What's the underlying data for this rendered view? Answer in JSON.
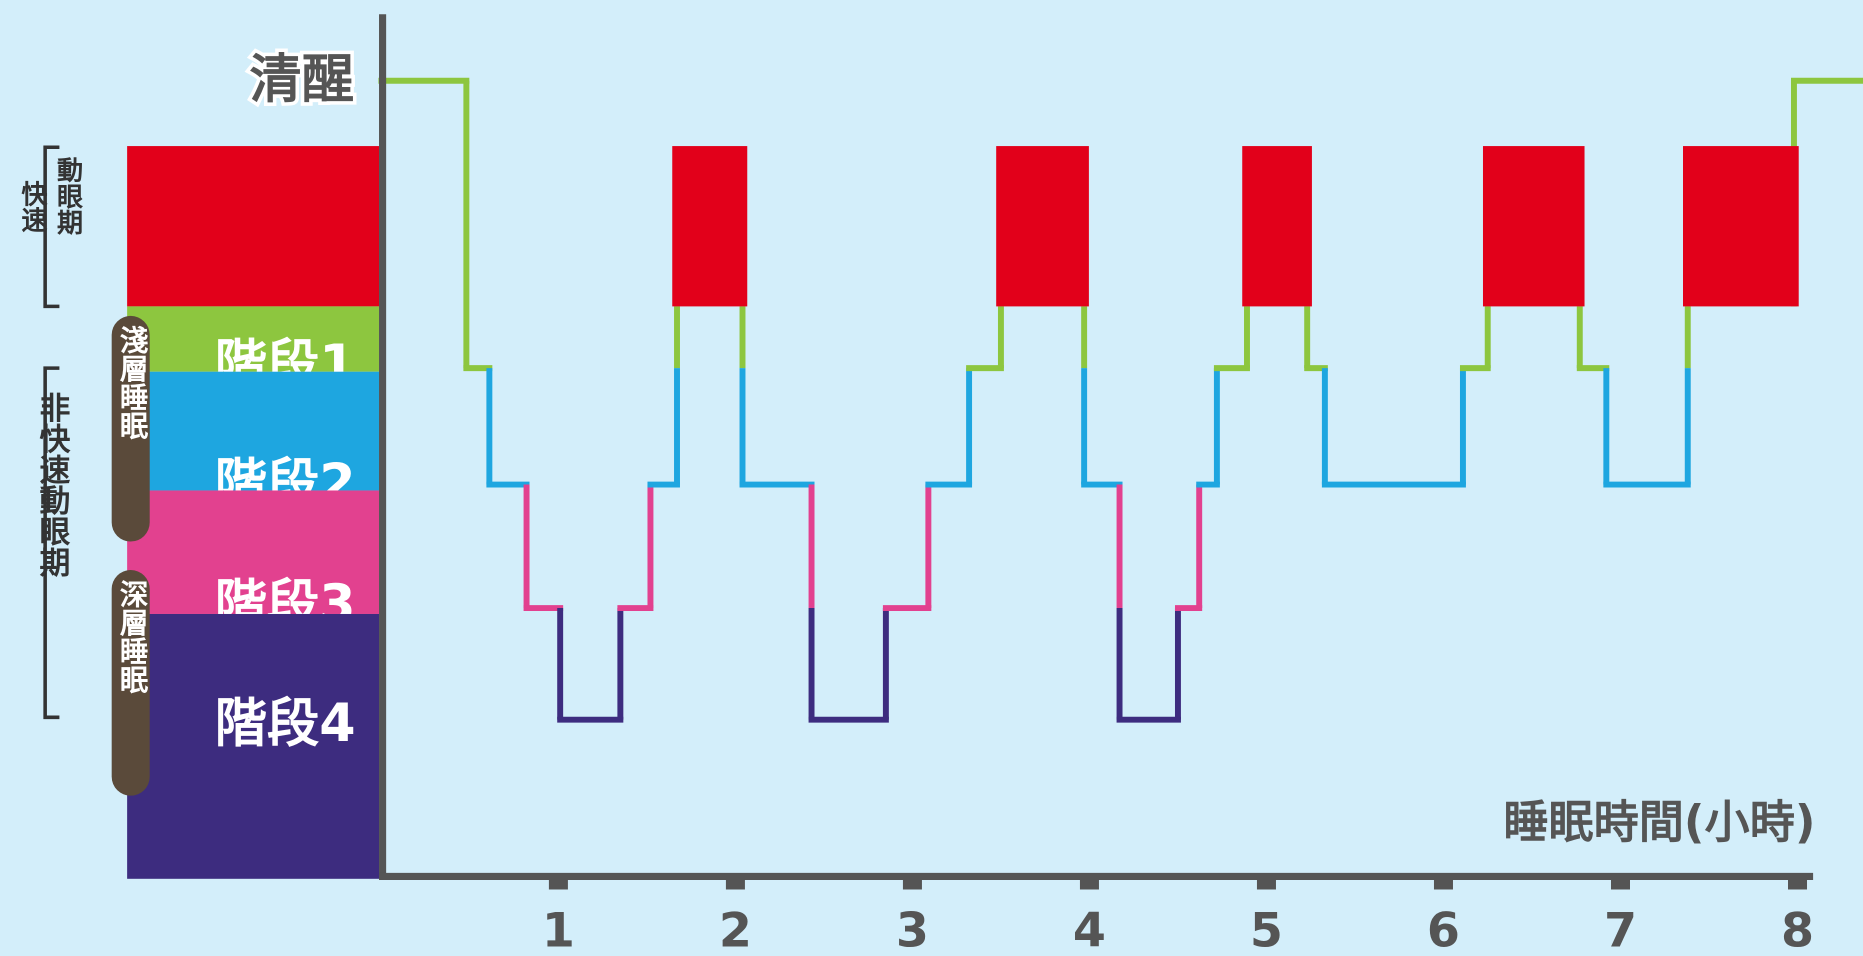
{
  "chart_data": {
    "type": "hypnogram",
    "stages": [
      "清醒",
      [
        "快速",
        "動眼期"
      ],
      "階段1",
      "階段2",
      "階段3",
      "階段4"
    ],
    "colors": [
      "#8dc63f",
      "#e2001a",
      "#8dc63f",
      "#1ea6e0",
      "#e2418f",
      "#3d2c7f"
    ],
    "nrem_label": "非快速動眼期",
    "light_sleep": "淺層睡眠",
    "deep_sleep": "深層睡眠",
    "xlabel": "睡眠時間(小時)",
    "x": [
      0,
      0.48,
      0.61,
      0.82,
      1.01,
      1.35,
      1.52,
      1.67,
      2.04,
      2.43,
      2.85,
      3.09,
      3.32,
      3.5,
      3.97,
      4.17,
      4.5,
      4.62,
      4.72,
      4.89,
      5.23,
      5.33,
      6.11,
      6.25,
      6.77,
      6.92,
      7.38,
      7.98,
      8.37
    ],
    "values": [
      0,
      2,
      3,
      4,
      5,
      4,
      3,
      1,
      3,
      5,
      4,
      3,
      2,
      1,
      3,
      5,
      4,
      3,
      2,
      1,
      2,
      3,
      2,
      1,
      2,
      3,
      1,
      0,
      0
    ],
    "xlim": [
      0,
      8.37
    ],
    "xticks": [
      1,
      2,
      3,
      4,
      5,
      6,
      7,
      8
    ]
  }
}
